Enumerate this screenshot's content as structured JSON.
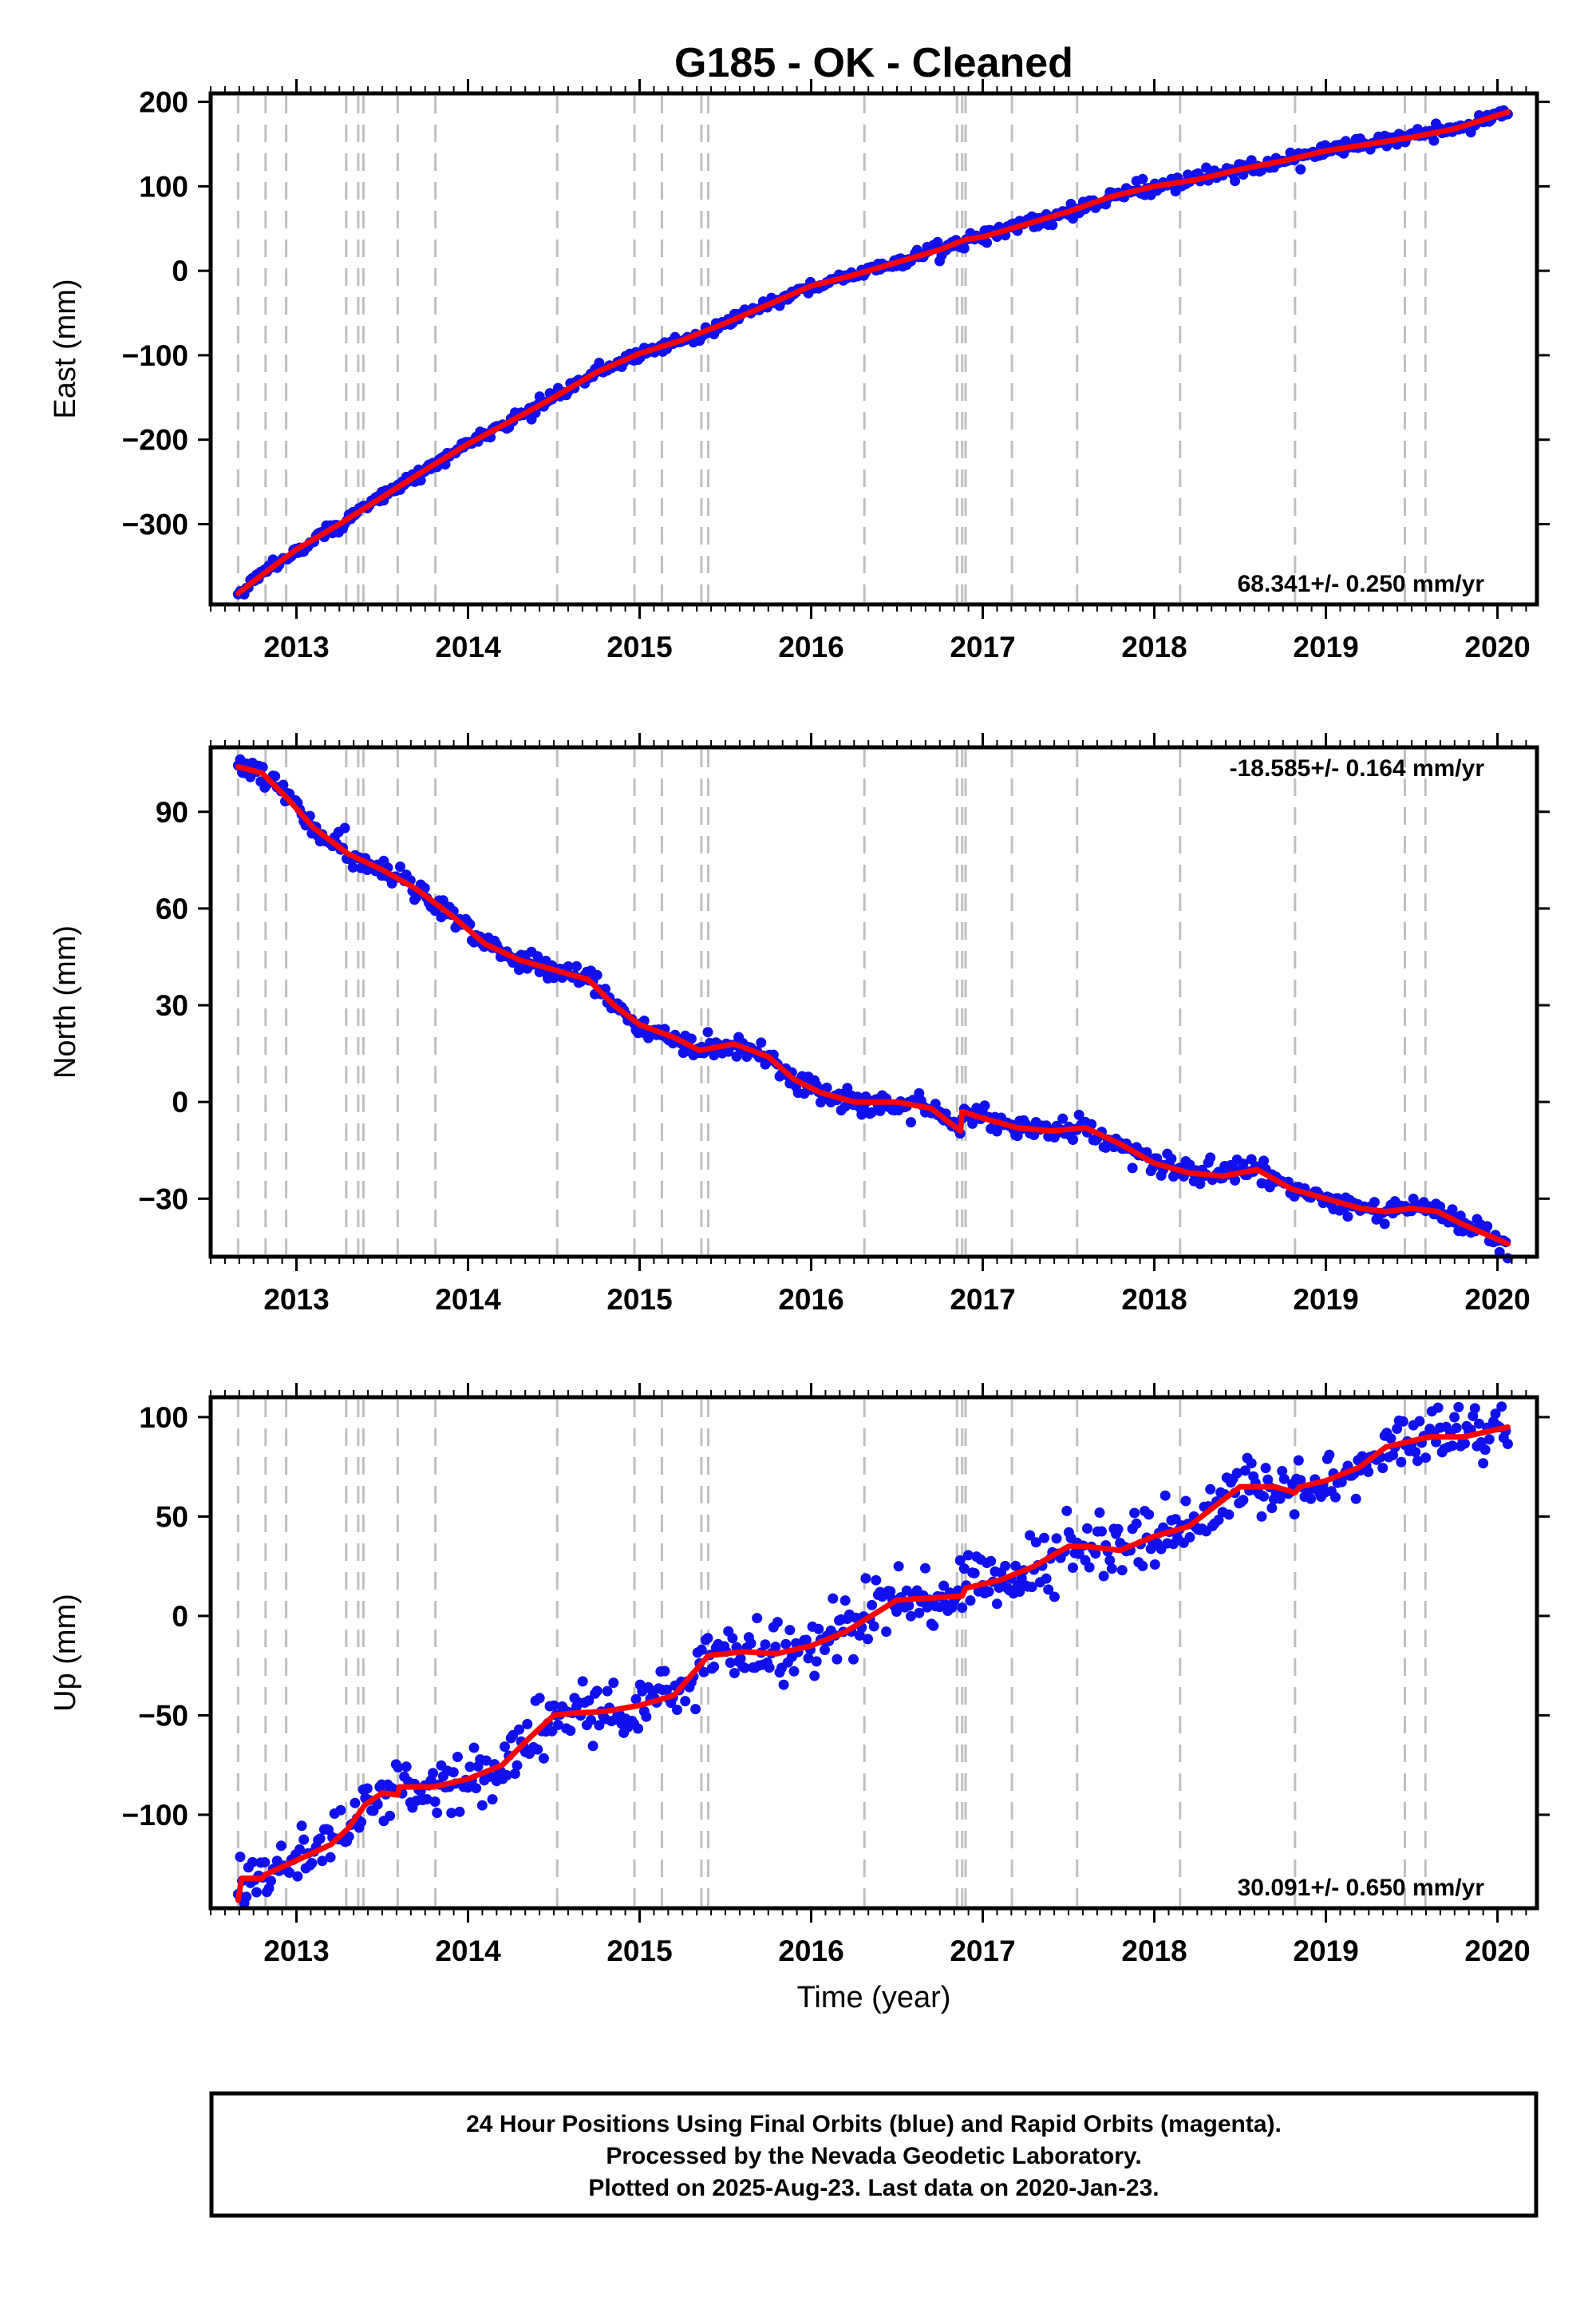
{
  "title": "G185  - OK - Cleaned",
  "x_axis_label": "Time (year)",
  "footer": {
    "line1": "24 Hour Positions Using Final Orbits (blue) and Rapid Orbits (magenta).",
    "line2": "Processed by the Nevada Geodetic Laboratory.",
    "line3": "Plotted on 2025-Aug-23. Last data on 2020-Jan-23."
  },
  "colors": {
    "final_orbits": "#1010ee",
    "model": "#ff0000",
    "event_lines": "#bfbfbf",
    "frame": "#000000"
  },
  "chart_data": [
    {
      "type": "scatter",
      "component": "East",
      "ylabel": "East (mm)",
      "rate": "68.341+/- 0.250 mm/yr",
      "xlim": [
        2012.5,
        2020.23
      ],
      "ylim": [
        -395,
        210
      ],
      "yticks": [
        200,
        100,
        0,
        -100,
        -200,
        -300
      ],
      "ytick_labels": [
        "200",
        "100",
        "0",
        "−100",
        "−200",
        "−300"
      ],
      "xticks": [
        2013,
        2014,
        2015,
        2016,
        2017,
        2018,
        2019,
        2020
      ],
      "xtick_labels": [
        "2013",
        "2014",
        "2015",
        "2016",
        "2017",
        "2018",
        "2019",
        "2020"
      ],
      "scatter": 4,
      "series": [
        {
          "role": "daily positions",
          "x": [
            2012.66,
            2012.8,
            2013.0,
            2013.25,
            2013.5,
            2013.75,
            2014.0,
            2014.25,
            2014.5,
            2014.75,
            2015.0,
            2015.25,
            2015.5,
            2015.75,
            2016.0,
            2016.25,
            2016.5,
            2016.75,
            2016.9,
            2017.0,
            2017.25,
            2017.5,
            2017.75,
            2018.0,
            2018.25,
            2018.5,
            2018.75,
            2019.0,
            2019.25,
            2019.5,
            2019.75,
            2020.06
          ],
          "y": [
            -382,
            -360,
            -330,
            -300,
            -268,
            -236,
            -205,
            -178,
            -150,
            -120,
            -98,
            -82,
            -62,
            -40,
            -18,
            -5,
            10,
            25,
            37,
            40,
            55,
            70,
            88,
            100,
            108,
            120,
            130,
            142,
            150,
            158,
            168,
            188
          ]
        },
        {
          "role": "model fit",
          "x": [
            2012.66,
            2012.8,
            2013.0,
            2013.25,
            2013.5,
            2013.75,
            2014.0,
            2014.25,
            2014.5,
            2014.75,
            2015.0,
            2015.25,
            2015.5,
            2015.75,
            2016.0,
            2016.25,
            2016.5,
            2016.75,
            2016.9,
            2017.0,
            2017.25,
            2017.5,
            2017.75,
            2018.0,
            2018.25,
            2018.5,
            2018.75,
            2019.0,
            2019.25,
            2019.5,
            2019.75,
            2020.06
          ],
          "y": [
            -382,
            -360,
            -330,
            -300,
            -268,
            -236,
            -205,
            -178,
            -150,
            -120,
            -98,
            -82,
            -62,
            -40,
            -18,
            -5,
            10,
            25,
            37,
            40,
            55,
            70,
            88,
            100,
            108,
            120,
            130,
            142,
            150,
            158,
            168,
            188
          ]
        }
      ],
      "event_lines_x": [
        2012.66,
        2012.82,
        2012.94,
        2013.29,
        2013.36,
        2013.39,
        2013.59,
        2013.81,
        2014.52,
        2014.97,
        2015.13,
        2015.36,
        2015.4,
        2016.31,
        2016.85,
        2016.88,
        2016.9,
        2017.17,
        2017.55,
        2018.15,
        2018.82,
        2019.46,
        2019.58
      ]
    },
    {
      "type": "scatter",
      "component": "North",
      "ylabel": "North (mm)",
      "rate": "-18.585+/- 0.164 mm/yr",
      "xlim": [
        2012.5,
        2020.23
      ],
      "ylim": [
        -48,
        110
      ],
      "yticks": [
        90,
        60,
        30,
        0,
        -30
      ],
      "ytick_labels": [
        "90",
        "60",
        "30",
        "0",
        "−30"
      ],
      "xticks": [
        2013,
        2014,
        2015,
        2016,
        2017,
        2018,
        2019,
        2020
      ],
      "xtick_labels": [
        "2013",
        "2014",
        "2015",
        "2016",
        "2017",
        "2018",
        "2019",
        "2020"
      ],
      "scatter": 1.8,
      "series": [
        {
          "role": "daily positions",
          "x": [
            2012.66,
            2012.8,
            2012.95,
            2013.1,
            2013.3,
            2013.5,
            2013.7,
            2013.9,
            2014.1,
            2014.3,
            2014.5,
            2014.7,
            2014.85,
            2015.0,
            2015.2,
            2015.35,
            2015.55,
            2015.75,
            2015.9,
            2016.05,
            2016.25,
            2016.5,
            2016.7,
            2016.87,
            2016.88,
            2017.0,
            2017.2,
            2017.4,
            2017.6,
            2017.8,
            2018.0,
            2018.2,
            2018.4,
            2018.6,
            2018.8,
            2019.0,
            2019.2,
            2019.35,
            2019.5,
            2019.65,
            2019.8,
            2020.06
          ],
          "y": [
            104,
            102,
            94,
            85,
            77,
            72,
            66,
            58,
            49,
            44,
            41,
            38,
            30,
            24,
            20,
            16,
            18,
            14,
            7,
            3,
            0,
            0,
            -2,
            -9,
            -3,
            -5,
            -8,
            -9,
            -8,
            -13,
            -19,
            -22,
            -23,
            -21,
            -27,
            -30,
            -33,
            -34,
            -33,
            -34,
            -38,
            -44
          ]
        },
        {
          "role": "model fit",
          "x": [
            2012.66,
            2012.8,
            2012.95,
            2013.1,
            2013.3,
            2013.5,
            2013.7,
            2013.9,
            2014.1,
            2014.3,
            2014.5,
            2014.7,
            2014.85,
            2015.0,
            2015.2,
            2015.35,
            2015.55,
            2015.75,
            2015.9,
            2016.05,
            2016.25,
            2016.5,
            2016.7,
            2016.87,
            2016.88,
            2017.0,
            2017.2,
            2017.4,
            2017.6,
            2017.8,
            2018.0,
            2018.2,
            2018.4,
            2018.6,
            2018.8,
            2019.0,
            2019.2,
            2019.35,
            2019.5,
            2019.65,
            2019.8,
            2020.06
          ],
          "y": [
            104,
            102,
            94,
            85,
            77,
            72,
            66,
            58,
            49,
            44,
            41,
            38,
            30,
            24,
            20,
            16,
            18,
            14,
            7,
            3,
            0,
            0,
            -2,
            -9,
            -3,
            -5,
            -8,
            -9,
            -8,
            -13,
            -19,
            -22,
            -23,
            -21,
            -27,
            -30,
            -33,
            -34,
            -33,
            -34,
            -38,
            -44
          ]
        }
      ],
      "event_lines_x": [
        2012.66,
        2012.82,
        2012.94,
        2013.29,
        2013.36,
        2013.39,
        2013.59,
        2013.81,
        2014.52,
        2014.97,
        2015.13,
        2015.36,
        2015.4,
        2016.31,
        2016.85,
        2016.88,
        2016.9,
        2017.17,
        2017.55,
        2018.15,
        2018.82,
        2019.46,
        2019.58
      ]
    },
    {
      "type": "scatter",
      "component": "Up",
      "ylabel": "Up (mm)",
      "rate": "30.091+/- 0.650 mm/yr",
      "xlim": [
        2012.5,
        2020.23
      ],
      "ylim": [
        -147,
        110
      ],
      "yticks": [
        100,
        50,
        0,
        -50,
        -100
      ],
      "ytick_labels": [
        "100",
        "50",
        "0",
        "−50",
        "−100"
      ],
      "xticks": [
        2013,
        2014,
        2015,
        2016,
        2017,
        2018,
        2019,
        2020
      ],
      "xtick_labels": [
        "2013",
        "2014",
        "2015",
        "2016",
        "2017",
        "2018",
        "2019",
        "2020"
      ],
      "scatter": 7,
      "series": [
        {
          "role": "daily positions",
          "x": [
            2012.66,
            2012.68,
            2012.8,
            2012.82,
            2013.0,
            2013.2,
            2013.3,
            2013.4,
            2013.5,
            2013.59,
            2013.6,
            2013.8,
            2014.0,
            2014.2,
            2014.35,
            2014.5,
            2014.6,
            2014.8,
            2015.0,
            2015.2,
            2015.3,
            2015.4,
            2015.6,
            2015.8,
            2016.0,
            2016.2,
            2016.35,
            2016.5,
            2016.7,
            2016.88,
            2016.9,
            2017.1,
            2017.3,
            2017.5,
            2017.6,
            2017.8,
            2018.0,
            2018.2,
            2018.35,
            2018.5,
            2018.7,
            2018.82,
            2018.85,
            2019.0,
            2019.2,
            2019.35,
            2019.5,
            2019.6,
            2019.8,
            2020.06
          ],
          "y": [
            -143,
            -132,
            -132,
            -130,
            -123,
            -115,
            -107,
            -95,
            -89,
            -90,
            -86,
            -86,
            -82,
            -75,
            -62,
            -50,
            -49,
            -48,
            -45,
            -40,
            -30,
            -20,
            -18,
            -19,
            -15,
            -8,
            0,
            8,
            9,
            10,
            14,
            18,
            25,
            35,
            35,
            33,
            40,
            45,
            55,
            65,
            65,
            62,
            65,
            68,
            75,
            85,
            88,
            90,
            90,
            95
          ]
        },
        {
          "role": "model fit",
          "x": [
            2012.66,
            2012.68,
            2012.8,
            2012.82,
            2013.0,
            2013.2,
            2013.3,
            2013.4,
            2013.5,
            2013.59,
            2013.6,
            2013.8,
            2014.0,
            2014.2,
            2014.35,
            2014.5,
            2014.6,
            2014.8,
            2015.0,
            2015.2,
            2015.3,
            2015.4,
            2015.6,
            2015.8,
            2016.0,
            2016.2,
            2016.35,
            2016.5,
            2016.7,
            2016.88,
            2016.9,
            2017.1,
            2017.3,
            2017.5,
            2017.6,
            2017.8,
            2018.0,
            2018.2,
            2018.35,
            2018.5,
            2018.7,
            2018.82,
            2018.85,
            2019.0,
            2019.2,
            2019.35,
            2019.5,
            2019.6,
            2019.8,
            2020.06
          ],
          "y": [
            -143,
            -132,
            -132,
            -130,
            -123,
            -115,
            -107,
            -95,
            -89,
            -90,
            -86,
            -86,
            -82,
            -75,
            -62,
            -50,
            -49,
            -48,
            -45,
            -40,
            -30,
            -20,
            -18,
            -19,
            -15,
            -8,
            0,
            8,
            9,
            10,
            14,
            18,
            25,
            35,
            35,
            33,
            40,
            45,
            55,
            65,
            65,
            62,
            65,
            68,
            75,
            85,
            88,
            90,
            90,
            95
          ]
        }
      ],
      "event_lines_x": [
        2012.66,
        2012.82,
        2012.94,
        2013.29,
        2013.36,
        2013.39,
        2013.59,
        2013.81,
        2014.52,
        2014.97,
        2015.13,
        2015.36,
        2015.4,
        2016.31,
        2016.85,
        2016.88,
        2016.9,
        2017.17,
        2017.55,
        2018.15,
        2018.82,
        2019.46,
        2019.58
      ]
    }
  ]
}
